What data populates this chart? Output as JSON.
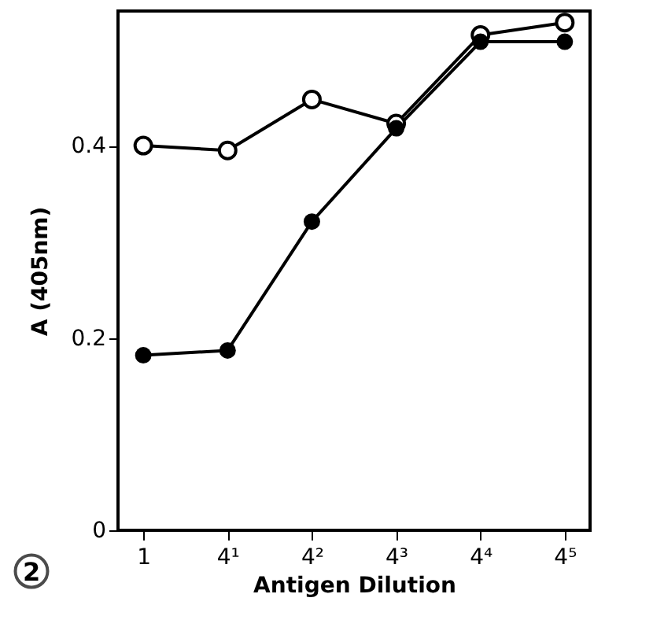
{
  "chart_data": {
    "type": "line",
    "categories": [
      "1",
      "4¹",
      "4²",
      "4³",
      "4⁴",
      "4⁵"
    ],
    "xlabel": "Antigen Dilution",
    "ylabel": "A (405nm)",
    "ylim": [
      0,
      0.54
    ],
    "yticks": [
      0,
      0.2,
      0.4
    ],
    "series": [
      {
        "color": "#000000",
        "values": [
          0.4,
          0.395,
          0.448,
          0.423,
          0.515,
          0.528
        ]
      },
      {
        "color": "#000000",
        "values": [
          0.182,
          0.187,
          0.321,
          0.418,
          0.508,
          0.508
        ]
      }
    ],
    "marker": "circle",
    "line_style": "solid",
    "grid": false,
    "legend": false,
    "annotations": [
      "2"
    ]
  }
}
